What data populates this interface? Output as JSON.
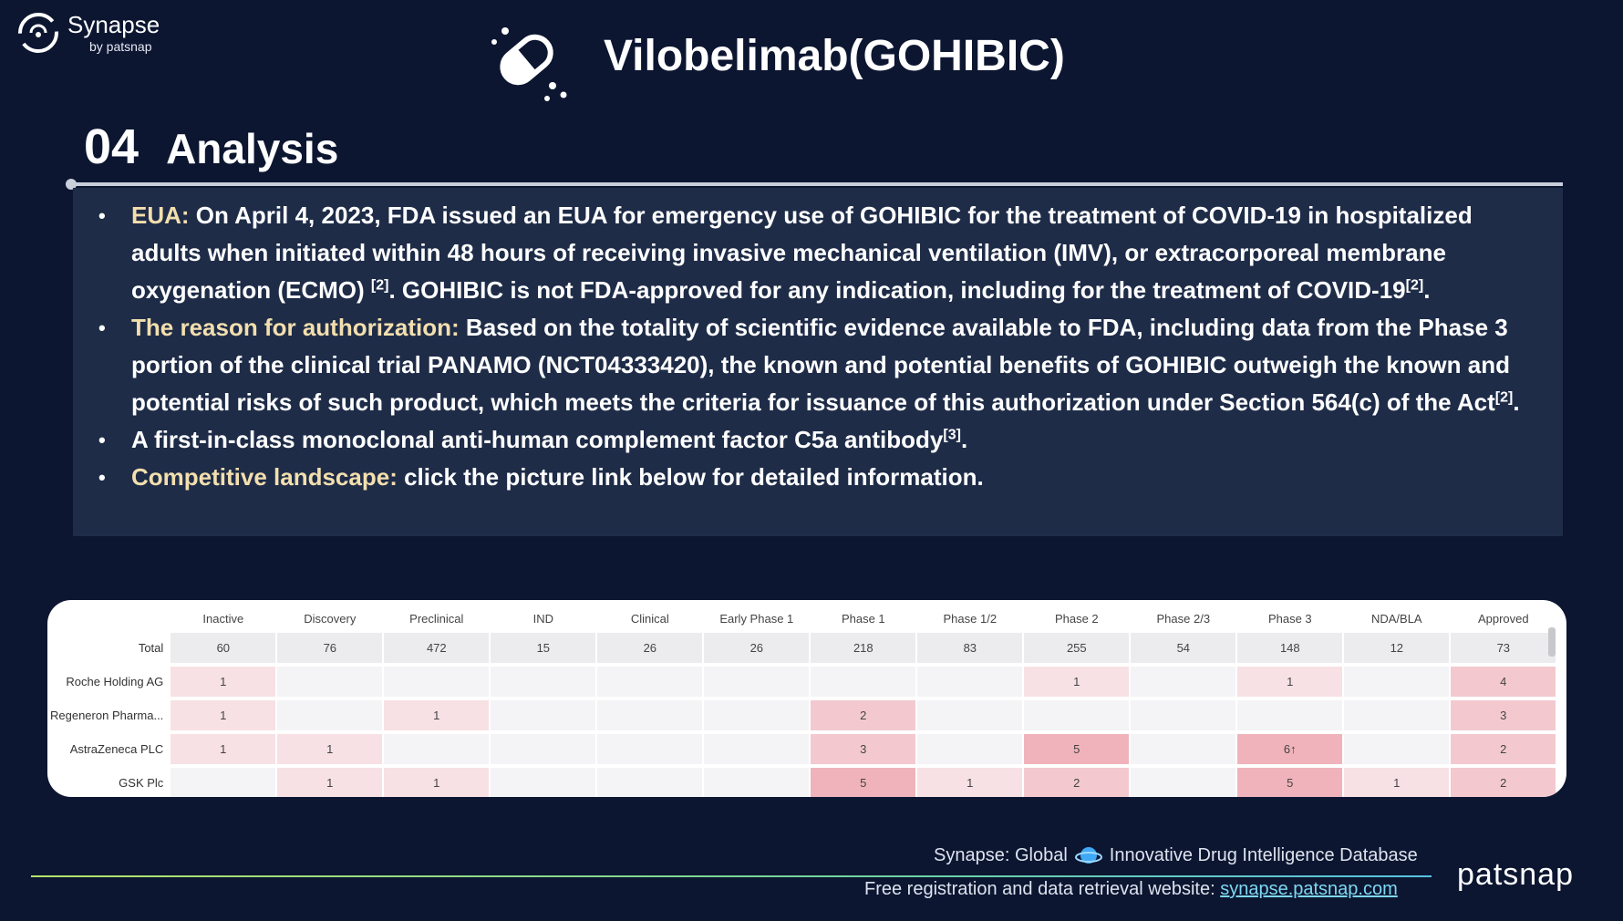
{
  "brand": {
    "name": "Synapse",
    "by": "by patsnap"
  },
  "title": "Vilobelimab(GOHIBIC)",
  "section": {
    "number": "04",
    "title": "Analysis"
  },
  "bullets": [
    {
      "label": "EUA:",
      "text": " On April 4, 2023, FDA issued an EUA for emergency use of GOHIBIC for the treatment of COVID-19 in hospitalized adults when initiated within 48 hours of receiving invasive mechanical ventilation (IMV), or extracorporeal membrane oxygenation (ECMO)",
      "ref1": "[2]",
      "text2": ". GOHIBIC is not FDA-approved for any indication, including for the treatment of COVID-19",
      "ref2": "[2]",
      "tail": "."
    },
    {
      "label": "The reason for authorization:",
      "text": " Based on the totality of scientific evidence available to FDA, including data from the Phase 3 portion of the clinical trial PANAMO (NCT04333420), the known and potential benefits of GOHIBIC outweigh the known and potential risks of such product, which meets the criteria for issuance of this authorization under Section 564(c) of the Act",
      "ref1": "[2]",
      "tail": "."
    },
    {
      "text": "A first-in-class monoclonal anti-human complement factor C5a antibody",
      "ref1": "[3]",
      "tail": "."
    },
    {
      "label": "Competitive landscape:",
      "text": " click the picture link below for detailed information."
    }
  ],
  "table": {
    "columns": [
      "Inactive",
      "Discovery",
      "Preclinical",
      "IND",
      "Clinical",
      "Early Phase 1",
      "Phase 1",
      "Phase 1/2",
      "Phase 2",
      "Phase 2/3",
      "Phase 3",
      "NDA/BLA",
      "Approved"
    ],
    "rows": [
      {
        "label": "Total",
        "cells": [
          "60",
          "76",
          "472",
          "15",
          "26",
          "26",
          "218",
          "83",
          "255",
          "54",
          "148",
          "12",
          "73"
        ]
      },
      {
        "label": "Roche Holding AG",
        "cells": [
          "1",
          "",
          "",
          "",
          "",
          "",
          "",
          "",
          "1",
          "",
          "1",
          "",
          "4"
        ]
      },
      {
        "label": "Regeneron Pharma...",
        "cells": [
          "1",
          "",
          "1",
          "",
          "",
          "",
          "2",
          "",
          "",
          "",
          "",
          "",
          "3"
        ]
      },
      {
        "label": "AstraZeneca PLC",
        "cells": [
          "1",
          "1",
          "",
          "",
          "",
          "",
          "3",
          "",
          "5",
          "",
          "6↑",
          "",
          "2"
        ]
      },
      {
        "label": "GSK Plc",
        "cells": [
          "",
          "1",
          "1",
          "",
          "",
          "",
          "5",
          "1",
          "2",
          "",
          "5",
          "1",
          "2"
        ]
      }
    ]
  },
  "footer": {
    "line1_pre": "Synapse: Global",
    "line1_post": "Innovative Drug Intelligence Database",
    "line2_label": "Free registration and data retrieval website:",
    "line2_link": "synapse.patsnap.com",
    "logo": "patsnap"
  },
  "colors": {
    "background": "#0c1631",
    "box": "#1e2c48",
    "label": "#f3dfae",
    "heat_low": "#f7e1e4",
    "heat_mid": "#f3c9cf",
    "heat_high": "#f0b3bb"
  }
}
